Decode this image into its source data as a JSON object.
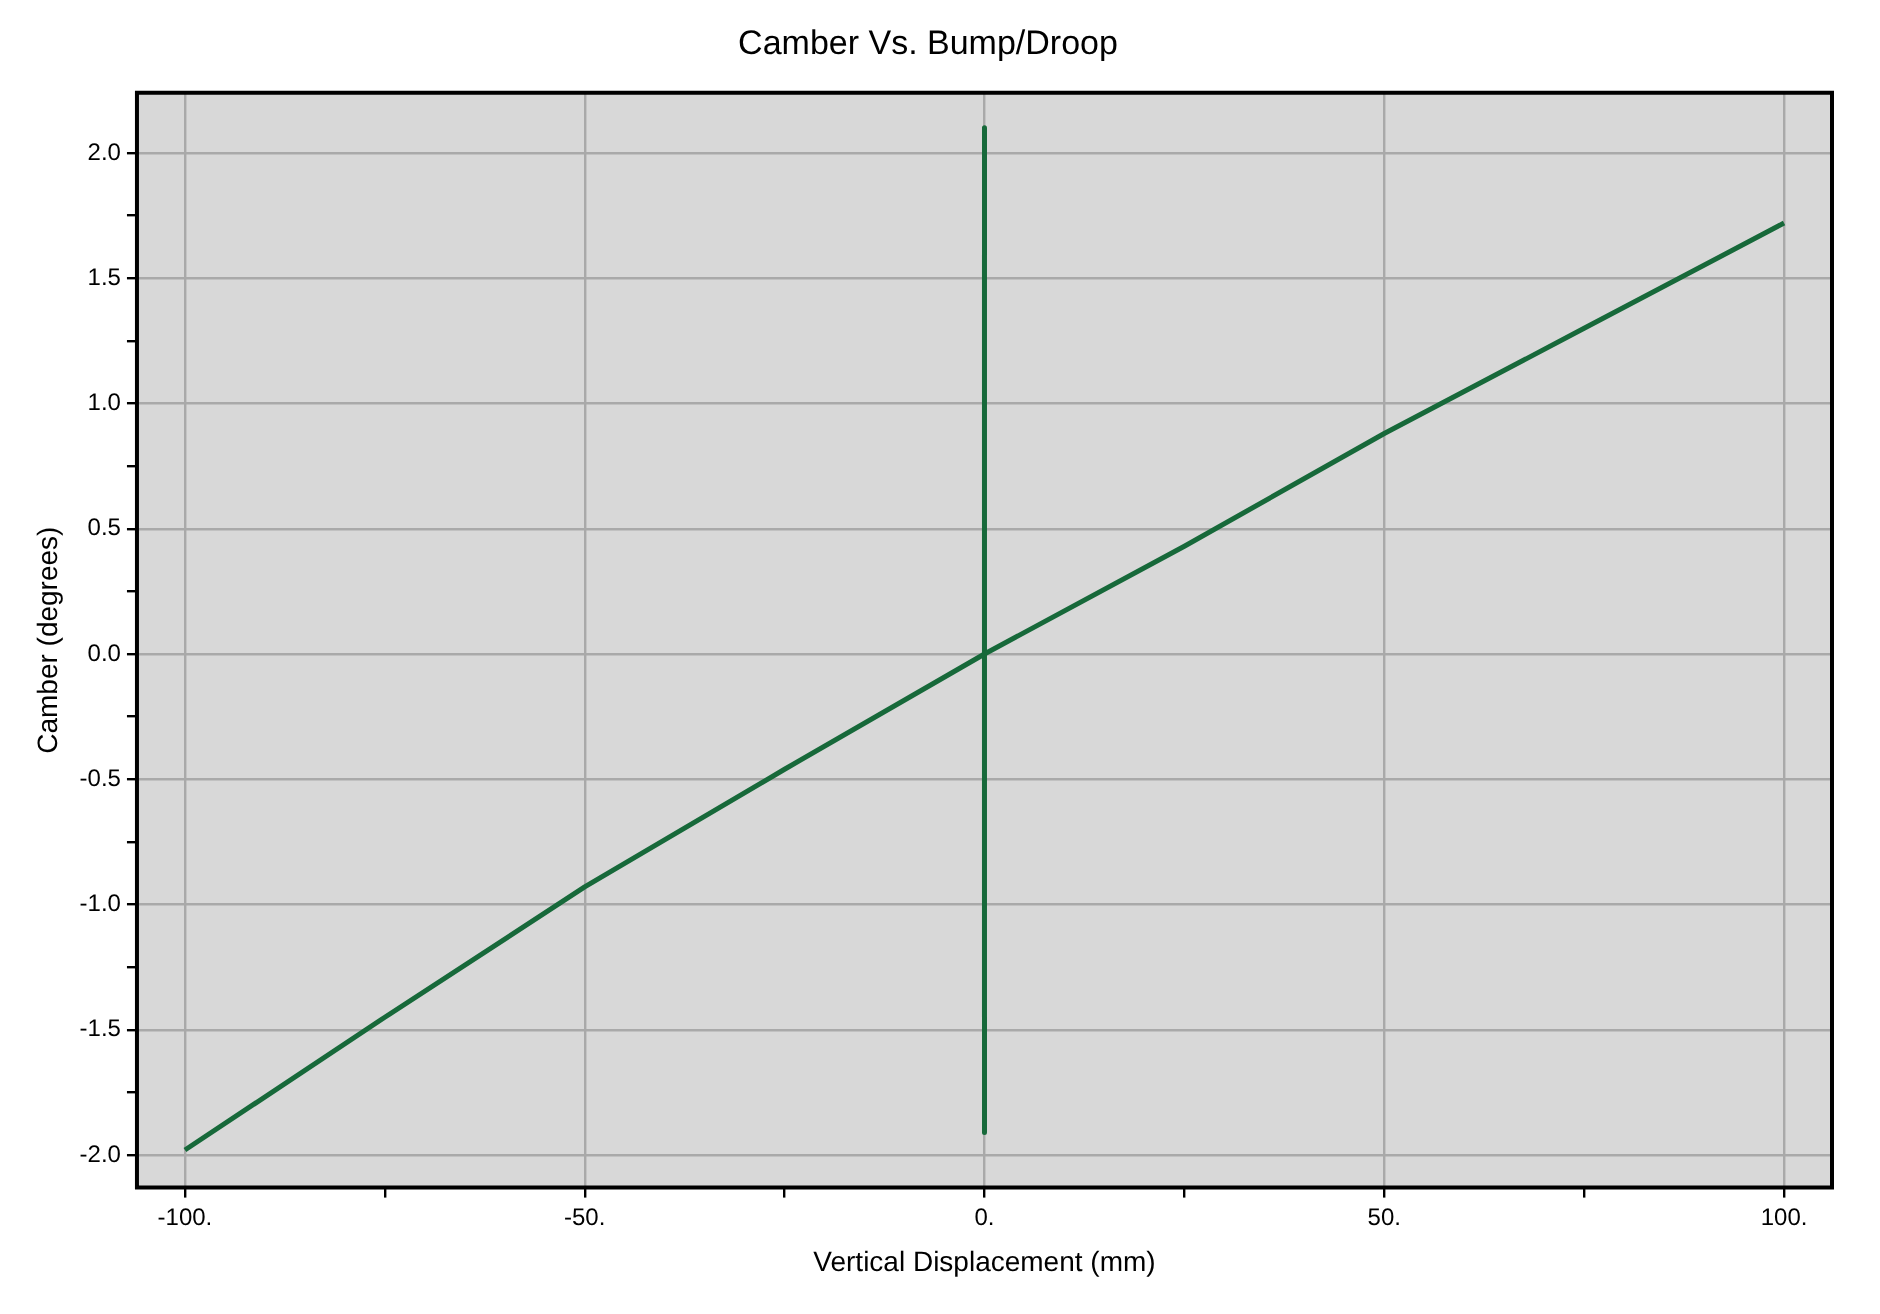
{
  "chart_data": {
    "type": "line",
    "title": "Camber Vs. Bump/Droop",
    "xlabel": "Vertical Displacement (mm)",
    "ylabel": "Camber (degrees)",
    "x": [
      -100,
      -75,
      -50,
      -25,
      0,
      25,
      50,
      75,
      100
    ],
    "series": [
      {
        "color": "#17693a",
        "values": [
          -1.98,
          -1.45,
          -0.93,
          -0.46,
          0,
          0.43,
          0.88,
          1.3,
          1.72
        ]
      },
      {
        "color": "#17693a",
        "x": [
          0,
          0
        ],
        "values": [
          2.1,
          -1.91
        ]
      }
    ],
    "xlim": [
      -106,
      106
    ],
    "xticks": [
      {
        "value": -100,
        "label": "-100."
      },
      {
        "value": -75,
        "label": null
      },
      {
        "value": -50,
        "label": "-50."
      },
      {
        "value": -25,
        "label": null
      },
      {
        "value": 0,
        "label": "0."
      },
      {
        "value": 25,
        "label": null
      },
      {
        "value": 50,
        "label": "50."
      },
      {
        "value": 75,
        "label": null
      },
      {
        "value": 100,
        "label": "100."
      }
    ],
    "ylim": [
      -2.13,
      2.24
    ],
    "yticks": [
      {
        "value": -2,
        "label": "-2.0"
      },
      {
        "value": -1.75,
        "label": null
      },
      {
        "value": -1.5,
        "label": "-1.5"
      },
      {
        "value": -1.25,
        "label": null
      },
      {
        "value": -1,
        "label": "-1.0"
      },
      {
        "value": -0.75,
        "label": null
      },
      {
        "value": -0.5,
        "label": "-0.5"
      },
      {
        "value": -0.25,
        "label": null
      },
      {
        "value": 0,
        "label": "0.0"
      },
      {
        "value": 0.25,
        "label": null
      },
      {
        "value": 0.5,
        "label": "0.5"
      },
      {
        "value": 0.75,
        "label": null
      },
      {
        "value": 1,
        "label": "1.0"
      },
      {
        "value": 1.25,
        "label": null
      },
      {
        "value": 1.5,
        "label": "1.5"
      },
      {
        "value": 1.75,
        "label": null
      },
      {
        "value": 2,
        "label": "2.0"
      }
    ],
    "grid": true,
    "legend": false,
    "marker": "none",
    "line_style": "solid"
  }
}
